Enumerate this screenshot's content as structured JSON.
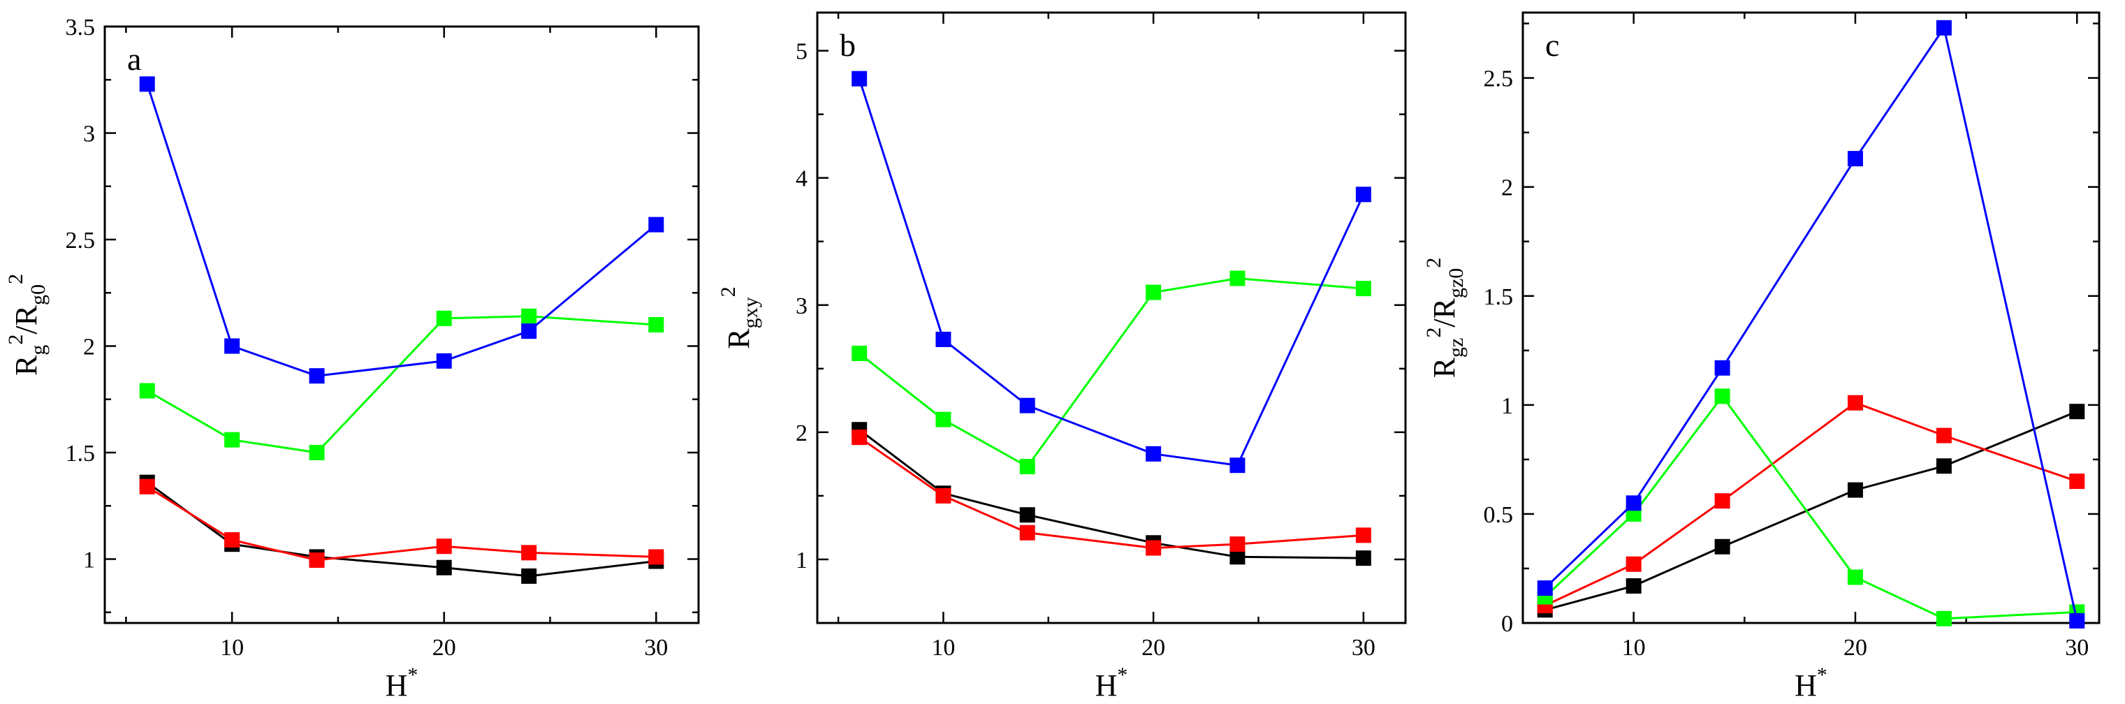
{
  "chart_data": [
    {
      "type": "line",
      "panel_label": "a",
      "xlabel": "H",
      "xlabel_sup": "*",
      "ylabel_parts": [
        {
          "t": "R",
          "s": "base"
        },
        {
          "t": "g",
          "s": "sub"
        },
        {
          "t": "2",
          "s": "sup"
        },
        {
          "t": "/R",
          "s": "base"
        },
        {
          "t": "g0",
          "s": "sub"
        },
        {
          "t": "2",
          "s": "sup"
        }
      ],
      "xlim": [
        4,
        32
      ],
      "ylim": [
        0.7,
        3.5
      ],
      "xticks": [
        10,
        20,
        30
      ],
      "yticks": [
        1,
        1.5,
        2,
        2.5,
        3,
        3.5
      ],
      "ytick_labels": [
        "1",
        "1.5",
        "2",
        "2.5",
        "3",
        "3.5"
      ],
      "x": [
        6,
        10,
        14,
        20,
        24,
        30
      ],
      "series": [
        {
          "color": "#000000",
          "values": [
            1.36,
            1.07,
            1.01,
            0.96,
            0.92,
            0.99
          ]
        },
        {
          "color": "#ff0000",
          "values": [
            1.34,
            1.09,
            0.995,
            1.06,
            1.03,
            1.01
          ]
        },
        {
          "color": "#00ff00",
          "values": [
            1.79,
            1.56,
            1.5,
            2.13,
            2.14,
            2.1
          ]
        },
        {
          "color": "#0000ff",
          "values": [
            3.23,
            2.0,
            1.86,
            1.93,
            2.07,
            2.57
          ]
        }
      ]
    },
    {
      "type": "line",
      "panel_label": "b",
      "xlabel": "H",
      "xlabel_sup": "*",
      "ylabel_parts": [
        {
          "t": "R",
          "s": "base"
        },
        {
          "t": "gxy",
          "s": "sub"
        },
        {
          "t": "2",
          "s": "sup"
        }
      ],
      "xlim": [
        4,
        32
      ],
      "ylim": [
        0.5,
        5.3
      ],
      "xticks": [
        10,
        20,
        30
      ],
      "yticks": [
        1,
        2,
        3,
        4,
        5
      ],
      "ytick_labels": [
        "1",
        "2",
        "3",
        "4",
        "5"
      ],
      "x": [
        6,
        10,
        14,
        20,
        24,
        30
      ],
      "series": [
        {
          "color": "#000000",
          "values": [
            2.02,
            1.52,
            1.35,
            1.13,
            1.02,
            1.01
          ]
        },
        {
          "color": "#ff0000",
          "values": [
            1.96,
            1.5,
            1.21,
            1.09,
            1.12,
            1.19
          ]
        },
        {
          "color": "#00ff00",
          "values": [
            2.62,
            2.1,
            1.73,
            3.1,
            3.21,
            3.13
          ]
        },
        {
          "color": "#0000ff",
          "values": [
            4.78,
            2.73,
            2.21,
            1.83,
            1.74,
            3.87
          ]
        }
      ]
    },
    {
      "type": "line",
      "panel_label": "c",
      "xlabel": "H",
      "xlabel_sup": "*",
      "ylabel_parts": [
        {
          "t": "R",
          "s": "base"
        },
        {
          "t": "gz",
          "s": "sub"
        },
        {
          "t": "2",
          "s": "sup"
        },
        {
          "t": "/R",
          "s": "base"
        },
        {
          "t": "gz0",
          "s": "sub"
        },
        {
          "t": "2",
          "s": "sup"
        }
      ],
      "xlim": [
        5,
        31
      ],
      "ylim": [
        0,
        2.8
      ],
      "xticks": [
        10,
        20,
        30
      ],
      "yticks": [
        0,
        0.5,
        1,
        1.5,
        2,
        2.5
      ],
      "ytick_labels": [
        "0",
        "0.5",
        "1",
        "1.5",
        "2",
        "2.5"
      ],
      "x": [
        6,
        10,
        14,
        20,
        24,
        30
      ],
      "series": [
        {
          "color": "#000000",
          "values": [
            0.06,
            0.17,
            0.35,
            0.61,
            0.72,
            0.97
          ]
        },
        {
          "color": "#ff0000",
          "values": [
            0.08,
            0.27,
            0.56,
            1.01,
            0.86,
            0.65
          ]
        },
        {
          "color": "#00ff00",
          "values": [
            0.12,
            0.5,
            1.04,
            0.21,
            0.02,
            0.05
          ]
        },
        {
          "color": "#0000ff",
          "values": [
            0.16,
            0.55,
            1.17,
            2.13,
            2.73,
            0.01
          ]
        }
      ]
    }
  ]
}
